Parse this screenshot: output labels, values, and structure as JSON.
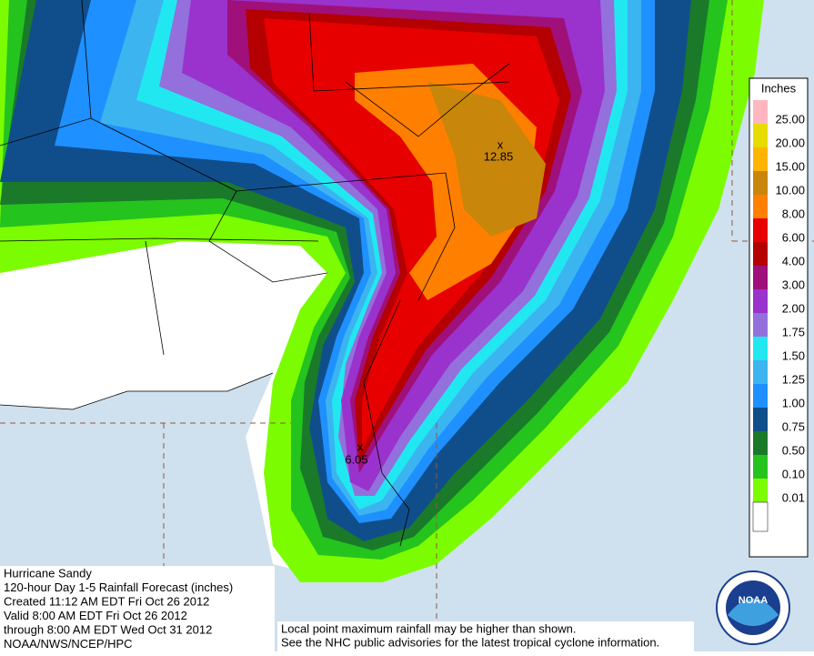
{
  "legend": {
    "title": "Inches",
    "labels": [
      "25.00",
      "20.00",
      "15.00",
      "10.00",
      "8.00",
      "6.00",
      "4.00",
      "3.00",
      "2.00",
      "1.75",
      "1.50",
      "1.25",
      "1.00",
      "0.75",
      "0.50",
      "0.10",
      "0.01"
    ],
    "colors": [
      "#ffb6c1",
      "#e6dc00",
      "#ffb400",
      "#c8860a",
      "#ff7f00",
      "#e60000",
      "#b40000",
      "#a0107a",
      "#9a32cd",
      "#9370db",
      "#21e8f0",
      "#3cb4f0",
      "#1e90ff",
      "#104e8b",
      "#1a7a2a",
      "#24c31e",
      "#7cfc00"
    ]
  },
  "points": [
    {
      "label": "12.85"
    },
    {
      "label": "6.05"
    }
  ],
  "info": {
    "lines": [
      "Hurricane Sandy",
      "120-hour Day 1-5 Rainfall Forecast (inches)",
      "Created 11:12 AM EDT Fri Oct 26 2012",
      "Valid 8:00 AM EDT Fri Oct 26 2012",
      "through 8:00 AM EDT Wed Oct 31 2012",
      "NOAA/NWS/NCEP/HPC"
    ]
  },
  "note": {
    "lines": [
      "Local point maximum rainfall may be higher than shown.",
      "See the NHC public advisories for the latest tropical cyclone information."
    ]
  },
  "logo": {
    "text": "NOAA"
  }
}
